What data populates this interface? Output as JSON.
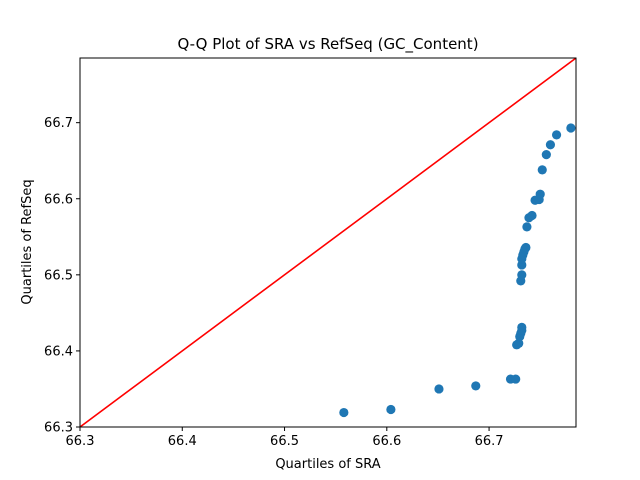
{
  "chart_data": {
    "type": "scatter",
    "title": "Q-Q Plot of SRA vs RefSeq (GC_Content)",
    "xlabel": "Quartiles of SRA",
    "ylabel": "Quartiles of RefSeq",
    "xlim": [
      66.3,
      66.785
    ],
    "ylim": [
      66.3,
      66.785
    ],
    "xticks": [
      66.3,
      66.4,
      66.5,
      66.6,
      66.7
    ],
    "yticks": [
      66.3,
      66.4,
      66.5,
      66.6,
      66.7
    ],
    "tick_labels_x": [
      "66.3",
      "66.4",
      "66.5",
      "66.6",
      "66.7"
    ],
    "tick_labels_y": [
      "66.3",
      "66.4",
      "66.5",
      "66.6",
      "66.7"
    ],
    "grid": false,
    "point_color": "#1f77b4",
    "reference_line": {
      "type": "y=x",
      "color": "#ff0000"
    },
    "points": [
      [
        66.558,
        66.319
      ],
      [
        66.604,
        66.323
      ],
      [
        66.651,
        66.35
      ],
      [
        66.687,
        66.354
      ],
      [
        66.721,
        66.363
      ],
      [
        66.726,
        66.363
      ],
      [
        66.727,
        66.408
      ],
      [
        66.729,
        66.41
      ],
      [
        66.73,
        66.419
      ],
      [
        66.731,
        66.423
      ],
      [
        66.732,
        66.427
      ],
      [
        66.732,
        66.431
      ],
      [
        66.731,
        66.492
      ],
      [
        66.732,
        66.5
      ],
      [
        66.732,
        66.513
      ],
      [
        66.732,
        66.521
      ],
      [
        66.733,
        66.526
      ],
      [
        66.734,
        66.53
      ],
      [
        66.735,
        66.534
      ],
      [
        66.736,
        66.536
      ],
      [
        66.737,
        66.563
      ],
      [
        66.739,
        66.575
      ],
      [
        66.742,
        66.578
      ],
      [
        66.745,
        66.598
      ],
      [
        66.749,
        66.599
      ],
      [
        66.75,
        66.606
      ],
      [
        66.752,
        66.638
      ],
      [
        66.756,
        66.658
      ],
      [
        66.76,
        66.671
      ],
      [
        66.766,
        66.684
      ],
      [
        66.78,
        66.693
      ]
    ]
  }
}
